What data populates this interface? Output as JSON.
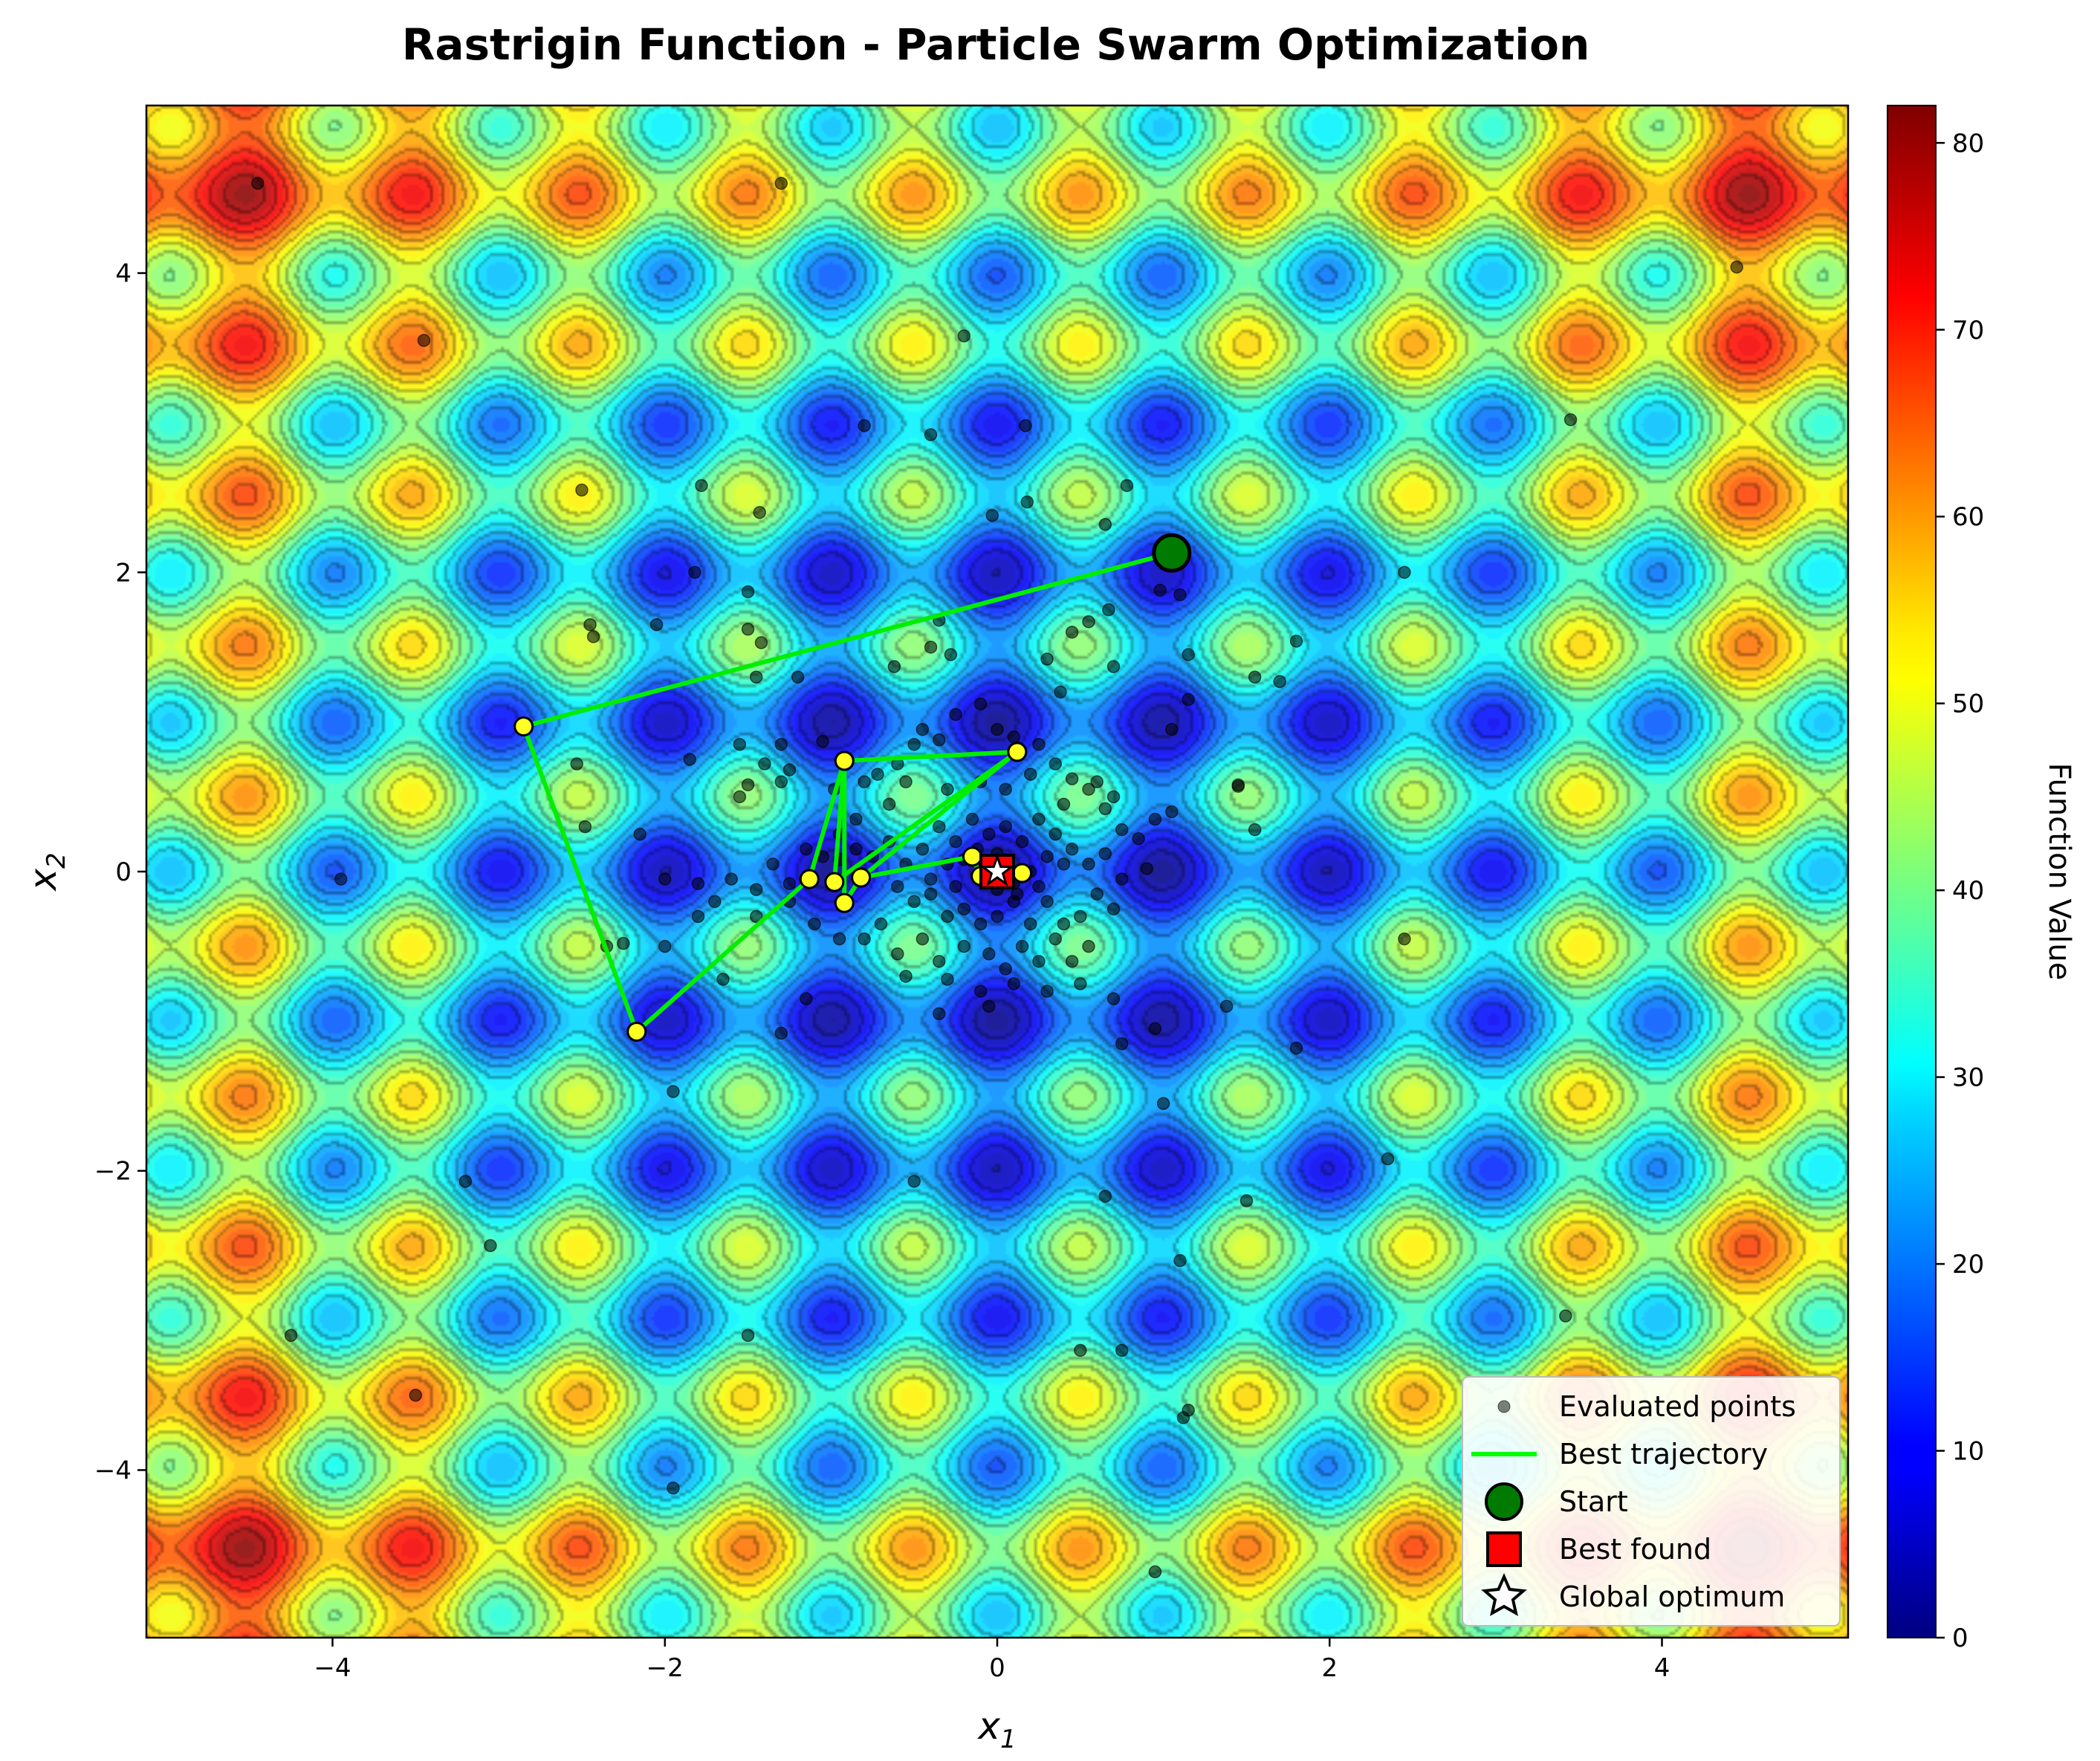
{
  "chart_data": {
    "type": "heatmap",
    "title": "Rastrigin Function - Particle Swarm Optimization",
    "xlabel_base": "x",
    "xlabel_sub": "1",
    "ylabel_base": "x",
    "ylabel_sub": "2",
    "xlim": [
      -5.12,
      5.12
    ],
    "ylim": [
      -5.12,
      5.12
    ],
    "xticks": [
      -4,
      -2,
      0,
      2,
      4
    ],
    "yticks": [
      -4,
      -2,
      0,
      2,
      4
    ],
    "colorbar": {
      "label": "Function Value",
      "range": [
        0,
        82
      ],
      "ticks": [
        0,
        10,
        20,
        30,
        40,
        50,
        60,
        70,
        80
      ],
      "colormap": "jet"
    },
    "legend_position": "lower-right",
    "legend": [
      {
        "label": "Evaluated points",
        "marker": "dot"
      },
      {
        "label": "Best trajectory",
        "marker": "line"
      },
      {
        "label": "Start",
        "marker": "circle"
      },
      {
        "label": "Best found",
        "marker": "square"
      },
      {
        "label": "Global optimum",
        "marker": "star"
      }
    ],
    "best_trajectory": [
      [
        1.05,
        2.13
      ],
      [
        -2.85,
        0.97
      ],
      [
        -2.17,
        -1.07
      ],
      [
        -1.13,
        -0.05
      ],
      [
        -0.92,
        0.74
      ],
      [
        -0.92,
        -0.21
      ],
      [
        -0.82,
        -0.04
      ],
      [
        0.12,
        0.8
      ],
      [
        -0.98,
        -0.07
      ],
      [
        -0.92,
        0.74
      ],
      [
        0.12,
        0.8
      ],
      [
        -0.82,
        -0.04
      ],
      [
        -0.15,
        0.1
      ],
      [
        -0.1,
        -0.03
      ],
      [
        0.04,
        0.0
      ],
      [
        -0.03,
        0.05
      ],
      [
        0.15,
        -0.01
      ],
      [
        0.02,
        -0.01
      ]
    ],
    "start": [
      1.05,
      2.13
    ],
    "best_found": [
      0.0,
      0.0
    ],
    "global_optimum": [
      0.0,
      0.0
    ],
    "evaluated_points": [
      [
        -4.45,
        4.6
      ],
      [
        -3.45,
        3.55
      ],
      [
        -2.5,
        2.55
      ],
      [
        -1.78,
        2.58
      ],
      [
        -1.43,
        2.4
      ],
      [
        -1.82,
        2.0
      ],
      [
        -1.5,
        1.87
      ],
      [
        -2.45,
        1.65
      ],
      [
        -2.43,
        1.57
      ],
      [
        -2.05,
        1.65
      ],
      [
        -1.5,
        1.62
      ],
      [
        -1.42,
        1.53
      ],
      [
        -1.45,
        1.3
      ],
      [
        -1.2,
        1.3
      ],
      [
        -0.62,
        1.37
      ],
      [
        -0.4,
        1.5
      ],
      [
        -0.28,
        1.45
      ],
      [
        -0.35,
        1.68
      ],
      [
        0.3,
        1.42
      ],
      [
        0.45,
        1.6
      ],
      [
        0.55,
        1.67
      ],
      [
        0.67,
        1.75
      ],
      [
        0.98,
        1.88
      ],
      [
        1.1,
        1.85
      ],
      [
        1.15,
        1.45
      ],
      [
        0.7,
        1.37
      ],
      [
        0.38,
        1.2
      ],
      [
        1.15,
        1.15
      ],
      [
        1.55,
        1.3
      ],
      [
        1.7,
        1.27
      ],
      [
        1.8,
        1.54
      ],
      [
        2.45,
        2.0
      ],
      [
        3.45,
        3.02
      ],
      [
        4.45,
        4.04
      ],
      [
        0.78,
        2.58
      ],
      [
        0.65,
        2.32
      ],
      [
        0.18,
        2.47
      ],
      [
        -0.03,
        2.38
      ],
      [
        -0.2,
        3.58
      ],
      [
        -0.4,
        2.92
      ],
      [
        -0.8,
        2.98
      ],
      [
        0.17,
        2.98
      ],
      [
        -1.3,
        4.6
      ],
      [
        -2.15,
        0.25
      ],
      [
        -2.48,
        0.3
      ],
      [
        -2.53,
        0.72
      ],
      [
        -1.85,
        0.75
      ],
      [
        -1.55,
        0.5
      ],
      [
        -1.5,
        0.58
      ],
      [
        -1.4,
        0.72
      ],
      [
        -1.3,
        0.6
      ],
      [
        -1.25,
        0.68
      ],
      [
        -1.55,
        0.85
      ],
      [
        -1.3,
        0.85
      ],
      [
        -1.05,
        0.87
      ],
      [
        -0.98,
        0.55
      ],
      [
        -0.8,
        0.6
      ],
      [
        -0.72,
        0.65
      ],
      [
        -0.6,
        0.72
      ],
      [
        -0.5,
        0.85
      ],
      [
        -0.45,
        0.95
      ],
      [
        -0.35,
        0.88
      ],
      [
        -0.25,
        1.05
      ],
      [
        -0.1,
        1.12
      ],
      [
        0.0,
        0.95
      ],
      [
        0.1,
        0.9
      ],
      [
        0.25,
        0.85
      ],
      [
        0.35,
        0.72
      ],
      [
        0.45,
        0.62
      ],
      [
        0.55,
        0.55
      ],
      [
        0.65,
        0.42
      ],
      [
        0.75,
        0.28
      ],
      [
        0.85,
        0.22
      ],
      [
        0.95,
        0.35
      ],
      [
        1.05,
        0.4
      ],
      [
        1.45,
        0.58
      ],
      [
        1.55,
        0.28
      ],
      [
        1.05,
        0.95
      ],
      [
        -3.95,
        -0.05
      ],
      [
        -2.0,
        -0.05
      ],
      [
        -1.8,
        -0.08
      ],
      [
        -1.6,
        -0.05
      ],
      [
        -1.45,
        -0.12
      ],
      [
        -1.35,
        0.05
      ],
      [
        -1.25,
        -0.08
      ],
      [
        -1.15,
        0.15
      ],
      [
        -1.05,
        0.1
      ],
      [
        -0.95,
        0.08
      ],
      [
        -0.85,
        0.15
      ],
      [
        -0.75,
        0.1
      ],
      [
        -0.65,
        0.2
      ],
      [
        -0.55,
        0.05
      ],
      [
        -0.45,
        0.15
      ],
      [
        -0.35,
        0.3
      ],
      [
        -0.25,
        0.2
      ],
      [
        -0.15,
        0.35
      ],
      [
        -0.05,
        0.25
      ],
      [
        0.05,
        0.3
      ],
      [
        0.15,
        0.2
      ],
      [
        0.25,
        0.35
      ],
      [
        0.35,
        0.25
      ],
      [
        0.45,
        0.15
      ],
      [
        0.55,
        0.05
      ],
      [
        0.65,
        0.12
      ],
      [
        0.75,
        -0.05
      ],
      [
        0.9,
        0.02
      ],
      [
        -0.6,
        -0.1
      ],
      [
        -0.5,
        -0.2
      ],
      [
        -0.4,
        -0.15
      ],
      [
        -0.3,
        -0.3
      ],
      [
        -0.2,
        -0.25
      ],
      [
        -0.1,
        -0.35
      ],
      [
        0.0,
        -0.3
      ],
      [
        0.1,
        -0.2
      ],
      [
        0.2,
        -0.35
      ],
      [
        0.3,
        -0.2
      ],
      [
        0.4,
        -0.35
      ],
      [
        0.5,
        -0.3
      ],
      [
        0.6,
        -0.15
      ],
      [
        0.7,
        -0.25
      ],
      [
        -0.7,
        -0.35
      ],
      [
        -0.8,
        -0.45
      ],
      [
        -0.6,
        -0.55
      ],
      [
        -0.45,
        -0.45
      ],
      [
        -0.35,
        -0.6
      ],
      [
        -0.2,
        -0.5
      ],
      [
        -0.05,
        -0.55
      ],
      [
        0.05,
        -0.65
      ],
      [
        0.15,
        -0.5
      ],
      [
        0.25,
        -0.6
      ],
      [
        0.35,
        -0.45
      ],
      [
        0.45,
        -0.6
      ],
      [
        0.55,
        -0.5
      ],
      [
        0.5,
        -0.75
      ],
      [
        0.3,
        -0.8
      ],
      [
        0.1,
        -0.75
      ],
      [
        -0.1,
        -0.8
      ],
      [
        -0.3,
        -0.72
      ],
      [
        -0.55,
        -0.7
      ],
      [
        -0.95,
        -0.45
      ],
      [
        -1.1,
        -0.35
      ],
      [
        -1.25,
        -0.2
      ],
      [
        -1.45,
        -0.3
      ],
      [
        -1.7,
        -0.2
      ],
      [
        -1.8,
        -0.3
      ],
      [
        -2.0,
        -0.5
      ],
      [
        -2.25,
        -0.48
      ],
      [
        -2.35,
        -0.5
      ],
      [
        -1.65,
        -0.72
      ],
      [
        -1.15,
        -0.85
      ],
      [
        -0.35,
        -0.95
      ],
      [
        -0.05,
        -0.9
      ],
      [
        0.7,
        -0.85
      ],
      [
        0.75,
        -1.15
      ],
      [
        0.95,
        -1.05
      ],
      [
        -1.3,
        -1.08
      ],
      [
        1.38,
        -0.9
      ],
      [
        1.8,
        -1.18
      ],
      [
        2.45,
        -0.45
      ],
      [
        2.35,
        -1.92
      ],
      [
        1.5,
        -2.2
      ],
      [
        1.0,
        -1.55
      ],
      [
        1.1,
        -2.6
      ],
      [
        0.65,
        -2.17
      ],
      [
        -0.5,
        -2.07
      ],
      [
        -1.95,
        -1.47
      ],
      [
        -3.2,
        -2.07
      ],
      [
        -3.05,
        -2.5
      ],
      [
        -4.25,
        -3.1
      ],
      [
        -3.5,
        -3.5
      ],
      [
        -1.5,
        -3.1
      ],
      [
        0.5,
        -3.2
      ],
      [
        0.75,
        -3.2
      ],
      [
        1.15,
        -3.6
      ],
      [
        1.12,
        -3.65
      ],
      [
        3.42,
        -2.97
      ],
      [
        0.95,
        -4.68
      ],
      [
        -1.95,
        -4.12
      ],
      [
        -0.1,
        0.05
      ],
      [
        -0.05,
        -0.05
      ],
      [
        0.05,
        0.08
      ],
      [
        0.1,
        -0.08
      ],
      [
        -0.2,
        0.08
      ],
      [
        0.2,
        0.0
      ],
      [
        -0.3,
        0.05
      ],
      [
        0.3,
        0.1
      ],
      [
        -0.4,
        -0.05
      ],
      [
        0.4,
        0.05
      ],
      [
        -0.25,
        -0.1
      ],
      [
        0.25,
        -0.1
      ],
      [
        -0.12,
        0.15
      ],
      [
        0.12,
        -0.15
      ],
      [
        0.0,
        0.12
      ],
      [
        0.0,
        -0.12
      ],
      [
        -0.65,
        0.45
      ],
      [
        -0.55,
        0.6
      ],
      [
        -0.3,
        0.55
      ],
      [
        -0.1,
        0.6
      ],
      [
        0.05,
        0.55
      ],
      [
        0.2,
        0.65
      ],
      [
        0.4,
        0.45
      ],
      [
        0.6,
        0.6
      ],
      [
        0.7,
        0.5
      ],
      [
        -0.85,
        0.35
      ],
      [
        -0.95,
        0.25
      ],
      [
        1.45,
        0.57
      ]
    ]
  }
}
